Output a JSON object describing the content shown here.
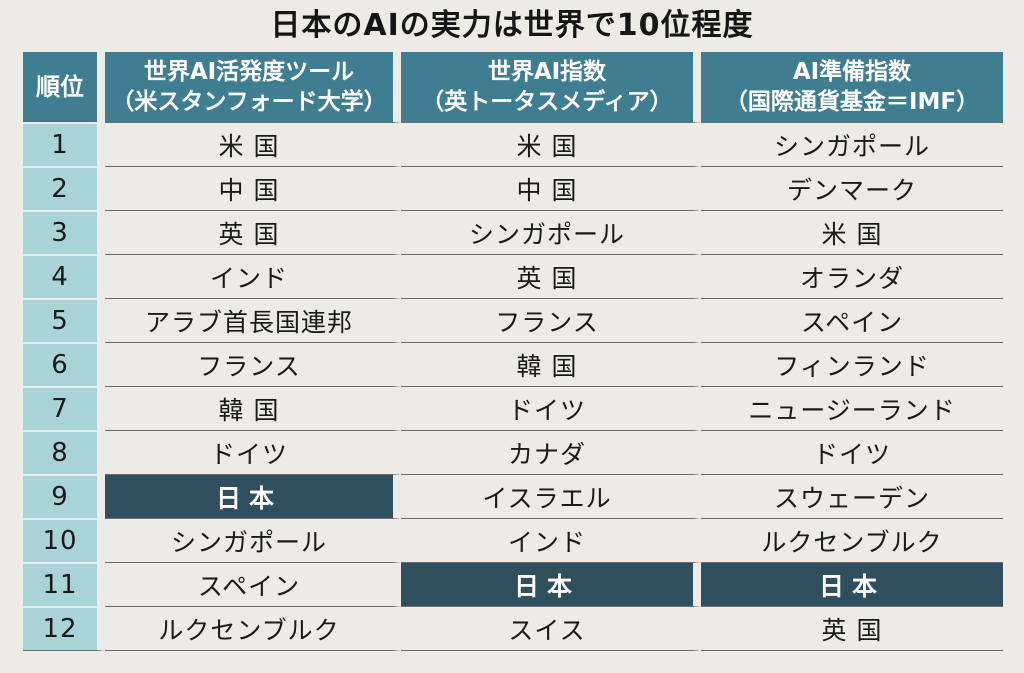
{
  "title": "日本のAIの実力は世界で10位程度",
  "header": {
    "rank": "順位",
    "col1": {
      "line1": "世界AI活発度ツール",
      "line2": "（米スタンフォード大学）"
    },
    "col2": {
      "line1": "世界AI指数",
      "line2": "（英トータスメディア）"
    },
    "col3": {
      "line1": "AI準備指数",
      "line2": "（国際通貨基金＝IMF）"
    }
  },
  "rows": [
    {
      "rank": "1",
      "col1": "米 国",
      "col2": "米 国",
      "col3": "シンガポール"
    },
    {
      "rank": "2",
      "col1": "中 国",
      "col2": "中 国",
      "col3": "デンマーク"
    },
    {
      "rank": "3",
      "col1": "英 国",
      "col2": "シンガポール",
      "col3": "米 国"
    },
    {
      "rank": "4",
      "col1": "インド",
      "col2": "英 国",
      "col3": "オランダ"
    },
    {
      "rank": "5",
      "col1": "アラブ首長国連邦",
      "col2": "フランス",
      "col3": "スペイン"
    },
    {
      "rank": "6",
      "col1": "フランス",
      "col2": "韓 国",
      "col3": "フィンランド"
    },
    {
      "rank": "7",
      "col1": "韓 国",
      "col2": "ドイツ",
      "col3": "ニュージーランド"
    },
    {
      "rank": "8",
      "col1": "ドイツ",
      "col2": "カナダ",
      "col3": "ドイツ"
    },
    {
      "rank": "9",
      "col1": "日本",
      "col2": "イスラエル",
      "col3": "スウェーデン"
    },
    {
      "rank": "10",
      "col1": "シンガポール",
      "col2": "インド",
      "col3": "ルクセンブルク"
    },
    {
      "rank": "11",
      "col1": "スペイン",
      "col2": "日本",
      "col3": "日本"
    },
    {
      "rank": "12",
      "col1": "ルクセンブルク",
      "col2": "スイス",
      "col3": "英 国"
    }
  ],
  "highlight": {
    "country": "日本",
    "color": "#2f4f5e"
  },
  "colors": {
    "header": "#3f7d91",
    "rank_cell": "#a9d4d7"
  }
}
